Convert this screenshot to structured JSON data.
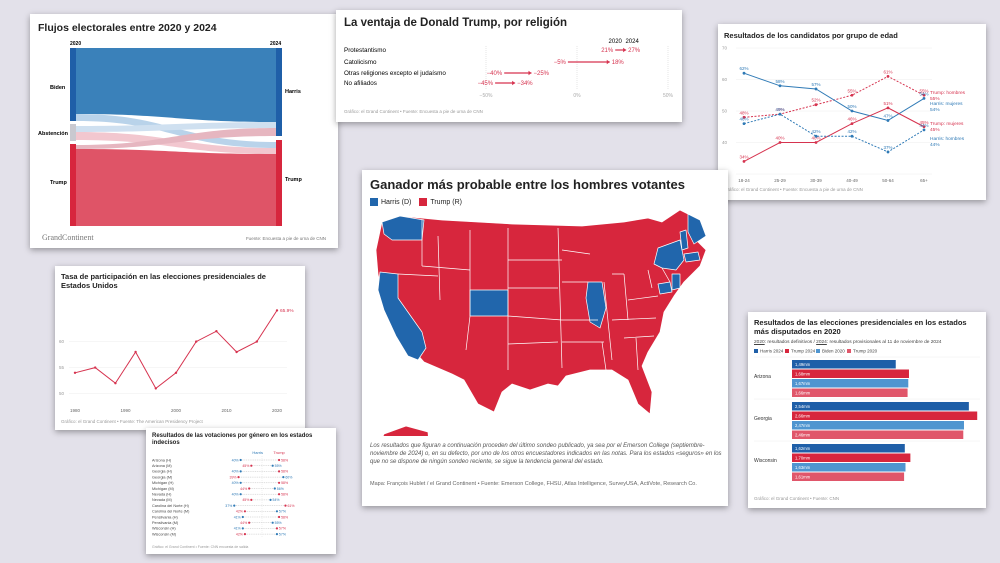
{
  "sankey": {
    "title": "Flujos electorales entre 2020 y 2024",
    "col_left": "2020",
    "col_right": "2024",
    "left_nodes": [
      "Biden",
      "Abstención",
      "Trump"
    ],
    "right_nodes": [
      "Harris",
      "Trump"
    ],
    "logo": "GrandContinent",
    "source": "Fuente: Encuesta a pie de urna de CNN"
  },
  "religion": {
    "title": "La ventaja de Donald Trump, por religión",
    "year_a": "2020",
    "year_b": "2024",
    "source": "Gráfico: el Grand Continent • Fuente: Encuesta a pie de urna de CNN",
    "chart_data": {
      "type": "dot-arrow",
      "categories": [
        "Protestantismo",
        "Catolicismo",
        "Otras religiones excepto el judaísmo",
        "No afiliados"
      ],
      "series": [
        {
          "name": "2020",
          "values": [
            21,
            -5,
            -40,
            -45
          ]
        },
        {
          "name": "2024",
          "values": [
            27,
            18,
            -25,
            -34
          ]
        }
      ],
      "value_labels_a": [
        "21%",
        "−5%",
        "−40%",
        "−45%"
      ],
      "value_labels_b": [
        "27%",
        "18%",
        "−25%",
        "−34%"
      ],
      "xlim": [
        -50,
        50
      ],
      "ticks": [
        "−50%",
        "0%",
        "50%"
      ]
    }
  },
  "age": {
    "title": "Resultados de los candidatos por grupo de edad",
    "source": "Gráfico: el Grand Continent • Fuente: Encuesta a pie de urna de CNN",
    "chart_data": {
      "type": "line",
      "categories": [
        "18-24",
        "25-29",
        "30-39",
        "40-49",
        "50-64",
        "65+"
      ],
      "ylim": [
        30,
        70
      ],
      "yticks": [
        "70",
        "60",
        "50",
        "40",
        "30"
      ],
      "series": [
        {
          "name": "Trump: hombres",
          "color": "#d6334f",
          "dashed": true,
          "values": [
            48,
            49,
            52,
            55,
            61,
            55
          ]
        },
        {
          "name": "Harris: mujeres",
          "color": "#2f7ab6",
          "dashed": false,
          "values": [
            62,
            58,
            57,
            50,
            47,
            54
          ]
        },
        {
          "name": "Trump: mujeres",
          "color": "#d6334f",
          "dashed": false,
          "values": [
            34,
            40,
            40,
            46,
            51,
            45
          ]
        },
        {
          "name": "Harris: hombres",
          "color": "#2f7ab6",
          "dashed": true,
          "values": [
            46,
            49,
            42,
            42,
            37,
            44
          ]
        }
      ],
      "point_labels": [
        [
          "48%",
          "49%",
          "52%",
          "55%",
          "61%",
          "55%"
        ],
        [
          "62%",
          "58%",
          "57%",
          "50%",
          "47%",
          "54%"
        ],
        [
          "34%",
          "40%",
          "40%",
          "46%",
          "51%",
          "45%"
        ],
        [
          "46%",
          "49%",
          "42%",
          "42%",
          "37%",
          "44%"
        ]
      ]
    }
  },
  "turnout": {
    "title": "Tasa de participación en las elecciones presidenciales de Estados Unidos",
    "source": "Gráfico: el Grand Continent • Fuente: The American Presidency Project",
    "chart_data": {
      "type": "line",
      "x": [
        1980,
        1984,
        1988,
        1992,
        1996,
        2000,
        2004,
        2008,
        2012,
        2016,
        2020
      ],
      "values": [
        54,
        55,
        52,
        58,
        51,
        54,
        60,
        62,
        58,
        60,
        66
      ],
      "ylim": [
        48,
        68
      ],
      "yticks": [
        "60",
        "55",
        "50"
      ],
      "xticks": [
        "1980",
        "1990",
        "2000",
        "2010",
        "2020"
      ],
      "end_label": "65.9%"
    }
  },
  "gender": {
    "title": "Resultados de las votaciones por género en los estados indecisos",
    "legend_harris": "Harris",
    "legend_trump": "Trump",
    "source": "Gráfico: el Grand Continent • Fuente: CNN encuesta de salida",
    "chart_data": {
      "type": "dot-range",
      "rows": [
        "Arizona (H)",
        "Arizona (M)",
        "Georgia (H)",
        "Georgia (M)",
        "Michigan (H)",
        "Michigan (M)",
        "Nevada (H)",
        "Nevada (M)",
        "Carolina del Norte (H)",
        "Carolina del Norte (M)",
        "Pensilvania (H)",
        "Pensilvania (M)",
        "Wisconsin (H)",
        "Wisconsin (M)"
      ],
      "harris": [
        40,
        55,
        40,
        60,
        40,
        56,
        40,
        54,
        37,
        57,
        41,
        55,
        41,
        57
      ],
      "trump": [
        58,
        45,
        58,
        39,
        58,
        44,
        58,
        45,
        61,
        42,
        58,
        44,
        57,
        42
      ],
      "labels_left": [
        "40%",
        "45%",
        "40%",
        "39%",
        "40%",
        "44%",
        "40%",
        "45%",
        "37%",
        "42%",
        "41%",
        "44%",
        "41%",
        "42%"
      ],
      "labels_right": [
        "58%",
        "55%",
        "58%",
        "60%",
        "58%",
        "56%",
        "58%",
        "54%",
        "61%",
        "57%",
        "58%",
        "55%",
        "57%",
        "57%"
      ],
      "xlim": [
        20,
        80
      ]
    }
  },
  "map": {
    "title": "Ganador más probable entre los hombres votantes",
    "legend": [
      {
        "label": "Harris (D)",
        "color": "#2166ac"
      },
      {
        "label": "Trump (R)",
        "color": "#d7263d"
      }
    ],
    "note": "Los resultados que figuran a continuación proceden del último sondeo publicado, ya sea por el Emerson College (septiembre-noviembre de 2024) o, en su defecto, por uno de los otros encuestadores indicados en las notas. Para los estados «seguros» en los que no se dispone de ningún sondeo reciente, se sigue la tendencia general del estado.",
    "credit": "Mapa: François Hublet / el Grand Continent • Fuente: Emerson College, FHSU, Atlas Intelligence, SurveyUSA, ActiVote, Research Co."
  },
  "swing": {
    "title": "Resultados de las elecciones presidenciales en los estados más disputados en 2020",
    "subtitle_a": "2020",
    "subtitle_a_rest": ": resultados definitivos /",
    "subtitle_b": "2024",
    "subtitle_b_rest": ": resultados provisionales al 11 de noviembre de 2024",
    "source": "Gráfico: el Grand Continent • Fuente: CNN",
    "chart_data": {
      "type": "bar",
      "orientation": "horizontal",
      "unit": "millones de votos",
      "legend": [
        "Harris 2024",
        "Trump 2024",
        "Biden 2020",
        "Trump 2020"
      ],
      "colors": [
        "#1f5fa8",
        "#d7263d",
        "#4f95d0",
        "#e0566a"
      ],
      "categories": [
        "Arizona",
        "Georgia",
        "Wisconsin"
      ],
      "values": [
        [
          1.49,
          1.68,
          1.67,
          1.66
        ],
        [
          2.54,
          2.66,
          2.47,
          2.46
        ],
        [
          1.62,
          1.7,
          1.63,
          1.61
        ]
      ],
      "labels": [
        [
          "1,49mm",
          "1,68mm",
          "1,67mm",
          "1,66mm"
        ],
        [
          "2,54mm",
          "2,66mm",
          "2,47mm",
          "2,46mm"
        ],
        [
          "1,62mm",
          "1,70mm",
          "1,63mm",
          "1,61mm"
        ]
      ],
      "xlim": [
        0,
        2.7
      ]
    }
  }
}
